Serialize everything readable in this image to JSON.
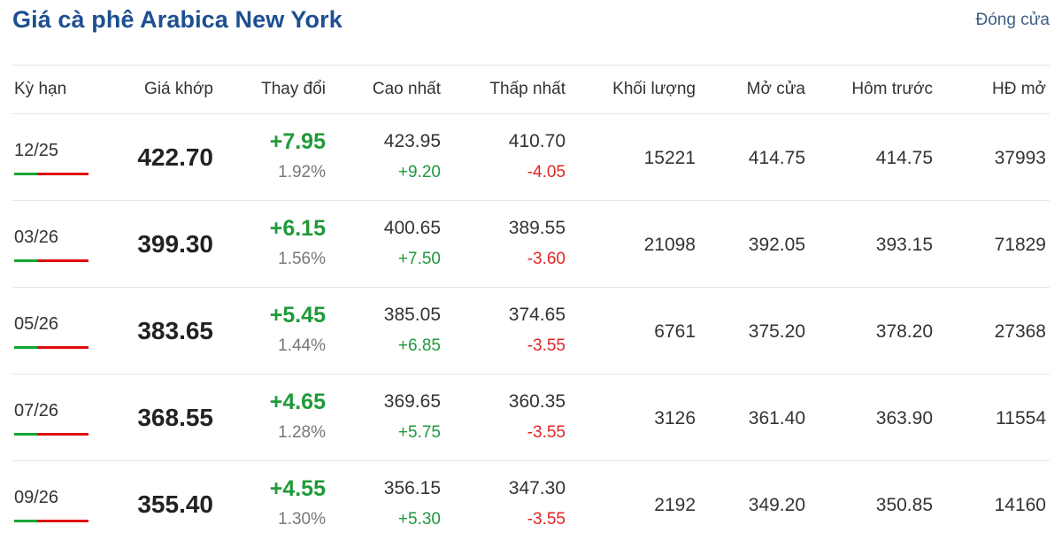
{
  "header": {
    "title": "Giá cà phê Arabica New York",
    "status": "Đóng cửa"
  },
  "columns": {
    "term": "Kỳ hạn",
    "price": "Giá khớp",
    "change": "Thay đổi",
    "high": "Cao nhất",
    "low": "Thấp nhất",
    "volume": "Khối lượng",
    "open": "Mở cửa",
    "prev": "Hôm trước",
    "oi": "HĐ mở"
  },
  "rows": [
    {
      "term": "12/25",
      "price": "422.70",
      "change": "+7.95",
      "pct": "1.92%",
      "high": "423.95",
      "high_diff": "+9.20",
      "low": "410.70",
      "low_diff": "-4.05",
      "volume": "15221",
      "open": "414.75",
      "prev": "414.75",
      "oi": "37993"
    },
    {
      "term": "03/26",
      "price": "399.30",
      "change": "+6.15",
      "pct": "1.56%",
      "high": "400.65",
      "high_diff": "+7.50",
      "low": "389.55",
      "low_diff": "-3.60",
      "volume": "21098",
      "open": "392.05",
      "prev": "393.15",
      "oi": "71829"
    },
    {
      "term": "05/26",
      "price": "383.65",
      "change": "+5.45",
      "pct": "1.44%",
      "high": "385.05",
      "high_diff": "+6.85",
      "low": "374.65",
      "low_diff": "-3.55",
      "volume": "6761",
      "open": "375.20",
      "prev": "378.20",
      "oi": "27368"
    },
    {
      "term": "07/26",
      "price": "368.55",
      "change": "+4.65",
      "pct": "1.28%",
      "high": "369.65",
      "high_diff": "+5.75",
      "low": "360.35",
      "low_diff": "-3.55",
      "volume": "3126",
      "open": "361.40",
      "prev": "363.90",
      "oi": "11554"
    },
    {
      "term": "09/26",
      "price": "355.40",
      "change": "+4.55",
      "pct": "1.30%",
      "high": "356.15",
      "high_diff": "+5.30",
      "low": "347.30",
      "low_diff": "-3.55",
      "volume": "2192",
      "open": "349.20",
      "prev": "350.85",
      "oi": "14160"
    }
  ],
  "colors": {
    "title": "#1d4f91",
    "up": "#1f9a3a",
    "down": "#e02424"
  }
}
